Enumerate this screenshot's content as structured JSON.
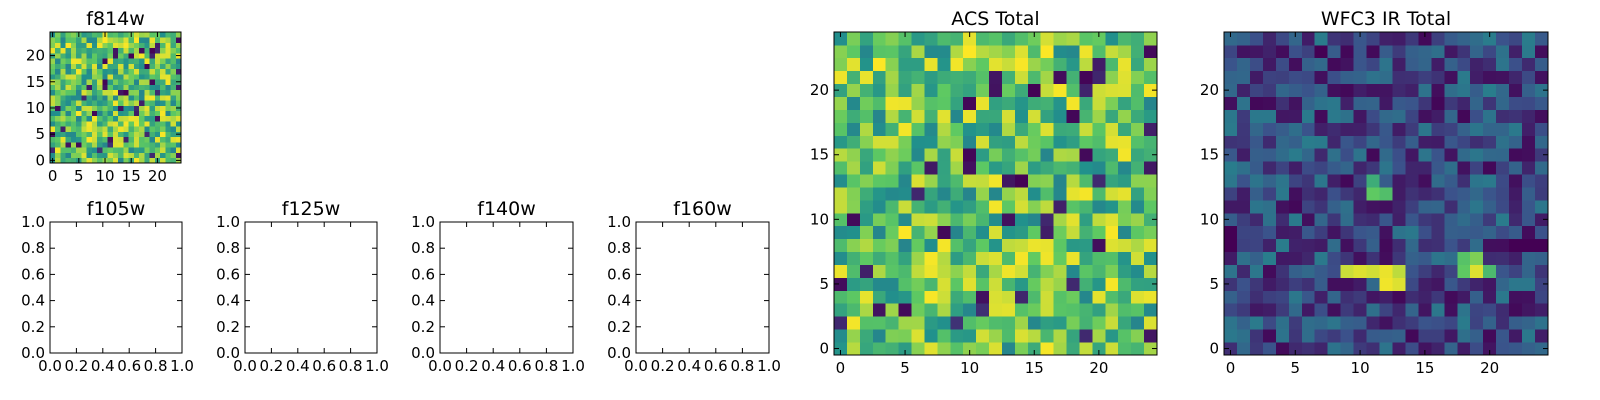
{
  "figure": {
    "colormap": "viridis",
    "colormap_stops": [
      "#440154",
      "#3b528b",
      "#21918c",
      "#5ec962",
      "#fde725"
    ]
  },
  "chart_data": [
    {
      "type": "heatmap",
      "title": "f814w",
      "xlabel": "",
      "ylabel": "",
      "xlim": [
        -0.5,
        24.5
      ],
      "ylim": [
        -0.5,
        24.5
      ],
      "xticks": [
        0,
        5,
        10,
        15,
        20
      ],
      "yticks": [
        0,
        5,
        10,
        15,
        20
      ],
      "xtick_labels": [
        "0",
        "5",
        "10",
        "15",
        "20"
      ],
      "ytick_labels": [
        "0",
        "5",
        "10",
        "15",
        "20"
      ],
      "grid_shape": [
        25,
        25
      ],
      "value_range": [
        0,
        1
      ],
      "generator": {
        "kind": "uniform_noise",
        "seed": 814,
        "low": 0.0,
        "high": 1.0
      },
      "description_of_values": "random per-pixel intensities, mostly green-yellow with scattered dark pixels"
    },
    {
      "type": "heatmap",
      "title": "f105w",
      "xlim": [
        0.0,
        1.0
      ],
      "ylim": [
        0.0,
        1.0
      ],
      "xticks": [
        0.0,
        0.2,
        0.4,
        0.6,
        0.8,
        1.0
      ],
      "yticks": [
        0.0,
        0.2,
        0.4,
        0.6,
        0.8,
        1.0
      ],
      "xtick_labels": [
        "0.0",
        "0.2",
        "0.4",
        "0.6",
        "0.8",
        "1.0"
      ],
      "ytick_labels": [
        "0.0",
        "0.2",
        "0.4",
        "0.6",
        "0.8",
        "1.0"
      ],
      "grid_shape": [
        0,
        0
      ],
      "generator": {
        "kind": "empty"
      }
    },
    {
      "type": "heatmap",
      "title": "f125w",
      "xlim": [
        0.0,
        1.0
      ],
      "ylim": [
        0.0,
        1.0
      ],
      "xticks": [
        0.0,
        0.2,
        0.4,
        0.6,
        0.8,
        1.0
      ],
      "yticks": [
        0.0,
        0.2,
        0.4,
        0.6,
        0.8,
        1.0
      ],
      "xtick_labels": [
        "0.0",
        "0.2",
        "0.4",
        "0.6",
        "0.8",
        "1.0"
      ],
      "ytick_labels": [
        "0.0",
        "0.2",
        "0.4",
        "0.6",
        "0.8",
        "1.0"
      ],
      "grid_shape": [
        0,
        0
      ],
      "generator": {
        "kind": "empty"
      }
    },
    {
      "type": "heatmap",
      "title": "f140w",
      "xlim": [
        0.0,
        1.0
      ],
      "ylim": [
        0.0,
        1.0
      ],
      "xticks": [
        0.0,
        0.2,
        0.4,
        0.6,
        0.8,
        1.0
      ],
      "yticks": [
        0.0,
        0.2,
        0.4,
        0.6,
        0.8,
        1.0
      ],
      "xtick_labels": [
        "0.0",
        "0.2",
        "0.4",
        "0.6",
        "0.8",
        "1.0"
      ],
      "ytick_labels": [
        "0.0",
        "0.2",
        "0.4",
        "0.6",
        "0.8",
        "1.0"
      ],
      "grid_shape": [
        0,
        0
      ],
      "generator": {
        "kind": "empty"
      }
    },
    {
      "type": "heatmap",
      "title": "f160w",
      "xlim": [
        0.0,
        1.0
      ],
      "ylim": [
        0.0,
        1.0
      ],
      "xticks": [
        0.0,
        0.2,
        0.4,
        0.6,
        0.8,
        1.0
      ],
      "yticks": [
        0.0,
        0.2,
        0.4,
        0.6,
        0.8,
        1.0
      ],
      "xtick_labels": [
        "0.0",
        "0.2",
        "0.4",
        "0.6",
        "0.8",
        "1.0"
      ],
      "ytick_labels": [
        "0.0",
        "0.2",
        "0.4",
        "0.6",
        "0.8",
        "1.0"
      ],
      "grid_shape": [
        0,
        0
      ],
      "generator": {
        "kind": "empty"
      }
    },
    {
      "type": "heatmap",
      "title": "ACS Total",
      "xlim": [
        -0.5,
        24.5
      ],
      "ylim": [
        -0.5,
        24.5
      ],
      "xticks": [
        0,
        5,
        10,
        15,
        20
      ],
      "yticks": [
        0,
        5,
        10,
        15,
        20
      ],
      "xtick_labels": [
        "0",
        "5",
        "10",
        "15",
        "20"
      ],
      "ytick_labels": [
        "0",
        "5",
        "10",
        "15",
        "20"
      ],
      "grid_shape": [
        25,
        25
      ],
      "value_range": [
        0,
        1
      ],
      "generator": {
        "kind": "uniform_noise",
        "seed": 814,
        "low": 0.0,
        "high": 1.0
      },
      "description_of_values": "same field as f814w shown larger: random intensities, mostly green-yellow with scattered dark pixels"
    },
    {
      "type": "heatmap",
      "title": "WFC3 IR Total",
      "xlim": [
        -0.5,
        24.5
      ],
      "ylim": [
        -0.5,
        24.5
      ],
      "xticks": [
        0,
        5,
        10,
        15,
        20
      ],
      "yticks": [
        0,
        5,
        10,
        15,
        20
      ],
      "xtick_labels": [
        "0",
        "5",
        "10",
        "15",
        "20"
      ],
      "ytick_labels": [
        "0",
        "5",
        "10",
        "15",
        "20"
      ],
      "grid_shape": [
        25,
        25
      ],
      "value_range": [
        0,
        1
      ],
      "generator": {
        "kind": "background_noise",
        "seed": 160,
        "low": 0.02,
        "high": 0.42
      },
      "bright_cells": [
        {
          "x": 9,
          "y": 6,
          "value": 0.92
        },
        {
          "x": 10,
          "y": 6,
          "value": 0.95
        },
        {
          "x": 11,
          "y": 6,
          "value": 0.93
        },
        {
          "x": 12,
          "y": 6,
          "value": 0.97
        },
        {
          "x": 13,
          "y": 6,
          "value": 0.9
        },
        {
          "x": 12,
          "y": 5,
          "value": 0.98
        },
        {
          "x": 13,
          "y": 5,
          "value": 0.95
        },
        {
          "x": 18,
          "y": 6,
          "value": 0.75
        },
        {
          "x": 19,
          "y": 6,
          "value": 0.95
        },
        {
          "x": 18,
          "y": 7,
          "value": 0.72
        },
        {
          "x": 19,
          "y": 7,
          "value": 0.8
        },
        {
          "x": 20,
          "y": 6,
          "value": 0.68
        },
        {
          "x": 11,
          "y": 12,
          "value": 0.75
        },
        {
          "x": 12,
          "y": 12,
          "value": 0.7
        },
        {
          "x": 11,
          "y": 13,
          "value": 0.62
        }
      ],
      "dark_cells": [
        {
          "x": 0,
          "y": 8,
          "value": 0.0
        },
        {
          "x": 0,
          "y": 9,
          "value": 0.0
        },
        {
          "x": 22,
          "y": 8,
          "value": 0.0
        },
        {
          "x": 23,
          "y": 8,
          "value": 0.0
        },
        {
          "x": 24,
          "y": 8,
          "value": 0.0
        },
        {
          "x": 7,
          "y": 23,
          "value": 0.0
        },
        {
          "x": 18,
          "y": 18,
          "value": 0.02
        },
        {
          "x": 16,
          "y": 19,
          "value": 0.02
        },
        {
          "x": 22,
          "y": 15,
          "value": 0.03
        }
      ],
      "description_of_values": "mostly dark blue background with two bright compact sources near y=5-7 and a faint source near (11,12)"
    }
  ]
}
